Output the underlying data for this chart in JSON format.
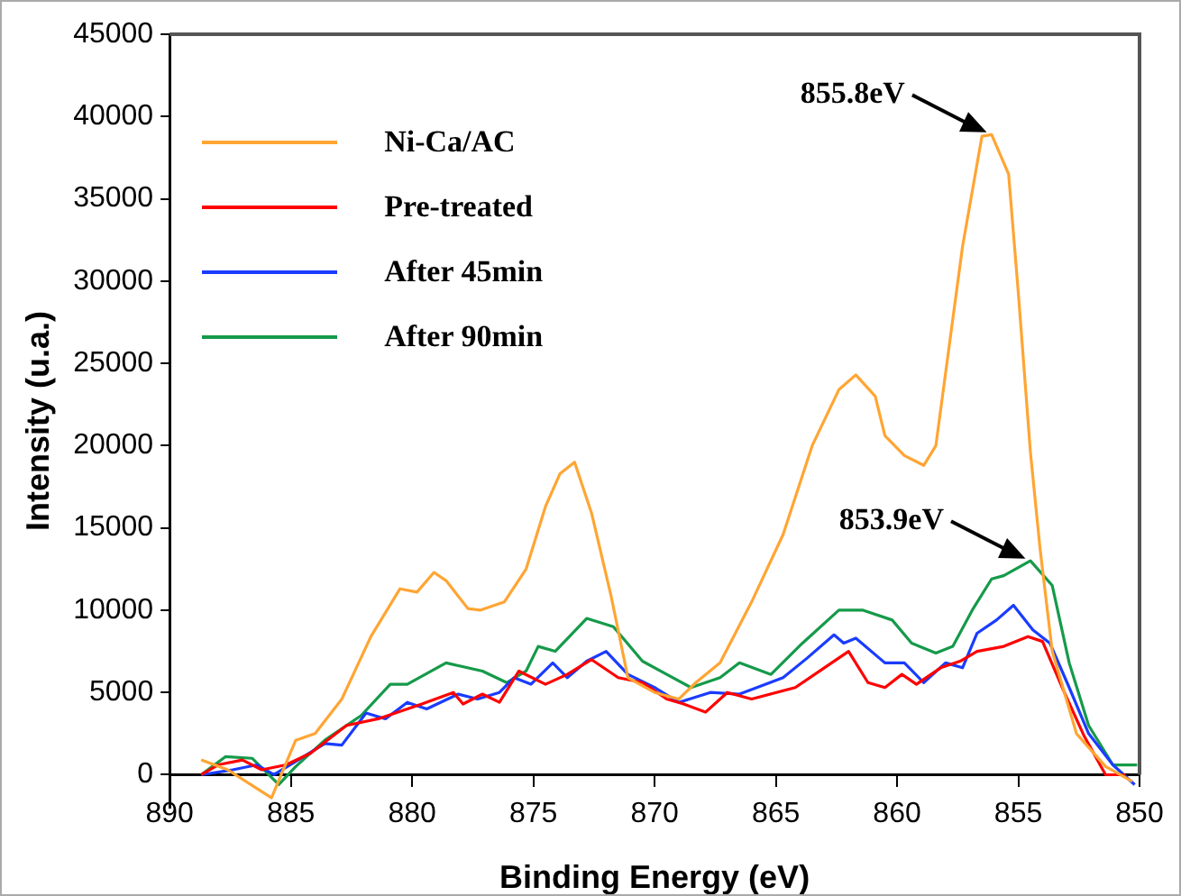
{
  "chart_data": {
    "type": "line",
    "xlabel": "Binding Energy (eV)",
    "ylabel": "Intensity (u.a.)",
    "xlim": [
      890,
      850
    ],
    "xticks": [
      890,
      885,
      880,
      875,
      870,
      865,
      860,
      855,
      850
    ],
    "ylim": [
      -2000,
      45000
    ],
    "yticks": [
      0,
      5000,
      10000,
      15000,
      20000,
      25000,
      30000,
      35000,
      40000,
      45000
    ],
    "grid": false,
    "legend": "top left",
    "marker": "none",
    "line_style": "solid",
    "annotations": [
      {
        "text": "855.8eV",
        "x": 856.1,
        "y": 38900
      },
      {
        "text": "853.9eV",
        "x": 854.5,
        "y": 13000
      }
    ],
    "series": [
      {
        "name": "Ni-Ca/AC",
        "color": "#ffa533",
        "x": [
          888.7,
          887.6,
          885.8,
          884.8,
          884.0,
          882.9,
          881.7,
          880.5,
          879.8,
          879.1,
          878.6,
          877.7,
          877.2,
          876.2,
          875.3,
          874.5,
          873.9,
          873.3,
          872.6,
          871.8,
          871.1,
          870.0,
          869.0,
          868.3,
          867.3,
          866.0,
          864.7,
          863.5,
          862.4,
          861.7,
          860.9,
          860.5,
          859.7,
          858.9,
          858.4,
          857.3,
          856.5,
          856.1,
          855.4,
          855.0,
          854.5,
          854.1,
          853.6,
          852.6,
          851.4,
          850.3
        ],
        "values": [
          900,
          300,
          -1400,
          2100,
          2500,
          4600,
          8400,
          11300,
          11100,
          12300,
          11800,
          10100,
          10000,
          10500,
          12500,
          16300,
          18300,
          19000,
          15900,
          10900,
          5900,
          5000,
          4600,
          5600,
          6800,
          10500,
          14600,
          20000,
          23400,
          24300,
          23000,
          20600,
          19400,
          18800,
          20000,
          32100,
          38800,
          38900,
          36500,
          29300,
          19600,
          13700,
          7500,
          2500,
          500,
          -400
        ]
      },
      {
        "name": "Pre-treated",
        "color": "#ff0000",
        "x": [
          888.7,
          888.0,
          887.0,
          886.2,
          885.2,
          884.2,
          882.7,
          881.4,
          879.6,
          878.3,
          877.9,
          877.1,
          876.4,
          875.6,
          874.5,
          873.6,
          872.6,
          871.5,
          870.5,
          869.5,
          868.8,
          867.9,
          867.0,
          866.0,
          864.2,
          863.0,
          862.0,
          861.2,
          860.5,
          859.8,
          859.2,
          858.2,
          857.4,
          856.7,
          855.6,
          854.6,
          854.0,
          853.1,
          852.3,
          851.4,
          850.6
        ],
        "values": [
          0,
          600,
          900,
          300,
          600,
          1300,
          3000,
          3400,
          4300,
          5000,
          4300,
          4900,
          4400,
          6300,
          5500,
          6100,
          7000,
          5900,
          5600,
          4600,
          4300,
          3800,
          5000,
          4600,
          5300,
          6500,
          7500,
          5600,
          5300,
          6100,
          5500,
          6500,
          6900,
          7500,
          7800,
          8400,
          8100,
          5000,
          2400,
          0,
          0
        ]
      },
      {
        "name": "After 45min",
        "color": "#1a3cff",
        "x": [
          888.7,
          887.4,
          886.4,
          885.7,
          884.7,
          883.6,
          882.9,
          881.9,
          881.1,
          880.2,
          879.4,
          878.1,
          877.3,
          876.4,
          875.8,
          875.1,
          874.2,
          873.6,
          872.8,
          872.0,
          871.1,
          870.0,
          869.0,
          867.7,
          866.5,
          864.7,
          863.7,
          862.6,
          862.2,
          861.7,
          860.5,
          859.7,
          858.9,
          858.0,
          857.3,
          856.7,
          855.9,
          855.2,
          854.4,
          853.7,
          852.9,
          852.1,
          851.1,
          850.2
        ],
        "values": [
          0,
          300,
          600,
          0,
          900,
          1900,
          1800,
          3750,
          3400,
          4400,
          4000,
          4900,
          4600,
          5000,
          5900,
          5500,
          6800,
          5900,
          6900,
          7500,
          6100,
          5300,
          4400,
          5000,
          4900,
          5900,
          7100,
          8500,
          8000,
          8300,
          6800,
          6800,
          5600,
          6800,
          6500,
          8600,
          9400,
          10300,
          8800,
          8000,
          5300,
          2500,
          600,
          -600
        ]
      },
      {
        "name": "After 90min",
        "color": "#159a4a",
        "x": [
          888.7,
          887.7,
          886.6,
          885.5,
          884.8,
          883.6,
          882.1,
          880.9,
          880.2,
          878.6,
          877.1,
          876.1,
          875.3,
          874.8,
          874.1,
          872.8,
          871.7,
          870.5,
          869.5,
          868.5,
          867.3,
          866.5,
          865.2,
          863.9,
          862.4,
          861.4,
          860.2,
          859.4,
          858.4,
          857.7,
          856.9,
          856.1,
          855.6,
          854.5,
          853.6,
          852.9,
          852.1,
          851.1,
          850.1
        ],
        "values": [
          0,
          1100,
          1000,
          -600,
          500,
          2100,
          3600,
          5500,
          5500,
          6800,
          6300,
          5600,
          6300,
          7800,
          7500,
          9500,
          9000,
          6900,
          6100,
          5300,
          5900,
          6800,
          6100,
          8000,
          10000,
          10000,
          9400,
          8000,
          7400,
          7800,
          10000,
          11900,
          12100,
          13000,
          11500,
          6800,
          3000,
          600,
          600
        ]
      }
    ]
  }
}
